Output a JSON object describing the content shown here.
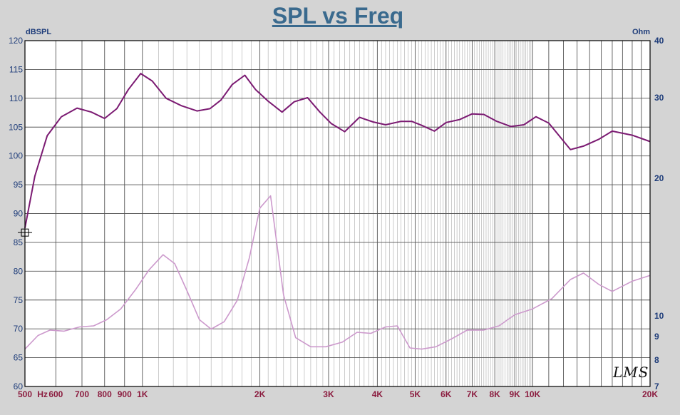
{
  "chart_data": {
    "type": "line",
    "title": "SPL vs Freq",
    "ylabel": "dBSPL",
    "y2label": "Ohm",
    "xunit": "Hz",
    "xscale": "log",
    "xlim": [
      500,
      20000
    ],
    "ylim": [
      60,
      120
    ],
    "y2lim": [
      7,
      40
    ],
    "y2scale": "log",
    "grid": true,
    "logo": "LMS",
    "yticks": [
      60,
      65,
      70,
      75,
      80,
      85,
      90,
      95,
      100,
      105,
      110,
      115,
      120
    ],
    "y2ticks": [
      {
        "value": 7,
        "label": "7"
      },
      {
        "value": 8,
        "label": "8"
      },
      {
        "value": 9,
        "label": "9"
      },
      {
        "value": 10,
        "label": "10"
      },
      {
        "value": 20,
        "label": "20"
      },
      {
        "value": 30,
        "label": "30"
      },
      {
        "value": 40,
        "label": "40"
      }
    ],
    "xticks": [
      {
        "value": 500,
        "label": "500"
      },
      {
        "value": 600,
        "label": "600"
      },
      {
        "value": 700,
        "label": "700"
      },
      {
        "value": 800,
        "label": "800"
      },
      {
        "value": 900,
        "label": "900"
      },
      {
        "value": 1000,
        "label": "1K"
      },
      {
        "value": 2000,
        "label": "2K"
      },
      {
        "value": 3000,
        "label": "3K"
      },
      {
        "value": 4000,
        "label": "4K"
      },
      {
        "value": 5000,
        "label": "5K"
      },
      {
        "value": 6000,
        "label": "6K"
      },
      {
        "value": 7000,
        "label": "7K"
      },
      {
        "value": 8000,
        "label": "8K"
      },
      {
        "value": 9000,
        "label": "9K"
      },
      {
        "value": 10000,
        "label": "10K"
      },
      {
        "value": 20000,
        "label": "20K"
      }
    ],
    "series": [
      {
        "axis": "left",
        "color": "#7b1a72",
        "points": [
          [
            500,
            87.5
          ],
          [
            530,
            96.5
          ],
          [
            570,
            103.5
          ],
          [
            620,
            106.8
          ],
          [
            680,
            108.3
          ],
          [
            740,
            107.6
          ],
          [
            800,
            106.5
          ],
          [
            860,
            108.2
          ],
          [
            920,
            111.5
          ],
          [
            990,
            114.3
          ],
          [
            1060,
            113.0
          ],
          [
            1150,
            110.0
          ],
          [
            1260,
            108.7
          ],
          [
            1380,
            107.8
          ],
          [
            1490,
            108.2
          ],
          [
            1590,
            109.7
          ],
          [
            1700,
            112.4
          ],
          [
            1830,
            114.0
          ],
          [
            1950,
            111.5
          ],
          [
            2100,
            109.5
          ],
          [
            2280,
            107.6
          ],
          [
            2450,
            109.4
          ],
          [
            2650,
            110.1
          ],
          [
            2850,
            107.6
          ],
          [
            3050,
            105.6
          ],
          [
            3300,
            104.2
          ],
          [
            3600,
            106.7
          ],
          [
            3900,
            105.9
          ],
          [
            4200,
            105.4
          ],
          [
            4600,
            106.0
          ],
          [
            4900,
            106.0
          ],
          [
            5200,
            105.3
          ],
          [
            5600,
            104.3
          ],
          [
            6000,
            105.8
          ],
          [
            6500,
            106.3
          ],
          [
            7000,
            107.3
          ],
          [
            7500,
            107.2
          ],
          [
            8100,
            106.0
          ],
          [
            8800,
            105.1
          ],
          [
            9500,
            105.4
          ],
          [
            10200,
            106.8
          ],
          [
            11000,
            105.7
          ],
          [
            12500,
            101.1
          ],
          [
            13500,
            101.7
          ],
          [
            14800,
            102.9
          ],
          [
            16000,
            104.3
          ],
          [
            18000,
            103.6
          ],
          [
            20000,
            102.5
          ]
        ]
      },
      {
        "axis": "right",
        "color": "#cc99cc",
        "points": [
          [
            500,
            8.45
          ],
          [
            540,
            9.05
          ],
          [
            580,
            9.3
          ],
          [
            630,
            9.25
          ],
          [
            690,
            9.45
          ],
          [
            750,
            9.5
          ],
          [
            810,
            9.8
          ],
          [
            880,
            10.35
          ],
          [
            960,
            11.4
          ],
          [
            1040,
            12.6
          ],
          [
            1130,
            13.6
          ],
          [
            1210,
            13.0
          ],
          [
            1300,
            11.35
          ],
          [
            1400,
            9.8
          ],
          [
            1500,
            9.35
          ],
          [
            1620,
            9.7
          ],
          [
            1750,
            10.8
          ],
          [
            1880,
            13.4
          ],
          [
            2000,
            17.2
          ],
          [
            2130,
            18.3
          ],
          [
            2300,
            11.1
          ],
          [
            2470,
            8.95
          ],
          [
            2700,
            8.55
          ],
          [
            2950,
            8.55
          ],
          [
            3250,
            8.75
          ],
          [
            3550,
            9.2
          ],
          [
            3850,
            9.15
          ],
          [
            4200,
            9.45
          ],
          [
            4500,
            9.5
          ],
          [
            4850,
            8.5
          ],
          [
            5200,
            8.45
          ],
          [
            5650,
            8.55
          ],
          [
            6200,
            8.9
          ],
          [
            6800,
            9.3
          ],
          [
            7500,
            9.3
          ],
          [
            8200,
            9.5
          ],
          [
            9000,
            10.05
          ],
          [
            10000,
            10.35
          ],
          [
            11200,
            10.9
          ],
          [
            12500,
            12.0
          ],
          [
            13500,
            12.4
          ],
          [
            14800,
            11.7
          ],
          [
            16000,
            11.3
          ],
          [
            18000,
            11.9
          ],
          [
            20000,
            12.25
          ]
        ]
      }
    ]
  }
}
